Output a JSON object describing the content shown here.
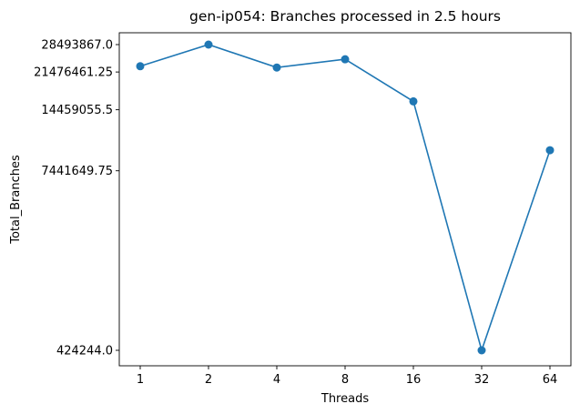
{
  "chart_data": {
    "type": "line",
    "title": "gen-ip054: Branches processed in 2.5 hours",
    "xlabel": "Threads",
    "ylabel": "Total_Branches",
    "categories": [
      "1",
      "2",
      "4",
      "8",
      "16",
      "32",
      "64"
    ],
    "series": [
      {
        "values": [
          22800000,
          28493867,
          22500000,
          24500000,
          15800000,
          424244,
          9350000
        ],
        "color": "#1f77b4",
        "marker": "circle"
      }
    ],
    "y_scale": "symlog",
    "y_ticks": [
      {
        "value": 424244,
        "label": "424244.0"
      },
      {
        "value": 7441649.75,
        "label": "7441649.75"
      },
      {
        "value": 14459055.5,
        "label": "14459055.5"
      },
      {
        "value": 21476461.25,
        "label": "21476461.25"
      },
      {
        "value": 28493867,
        "label": "28493867.0"
      }
    ],
    "grid": false,
    "legend": "none"
  }
}
